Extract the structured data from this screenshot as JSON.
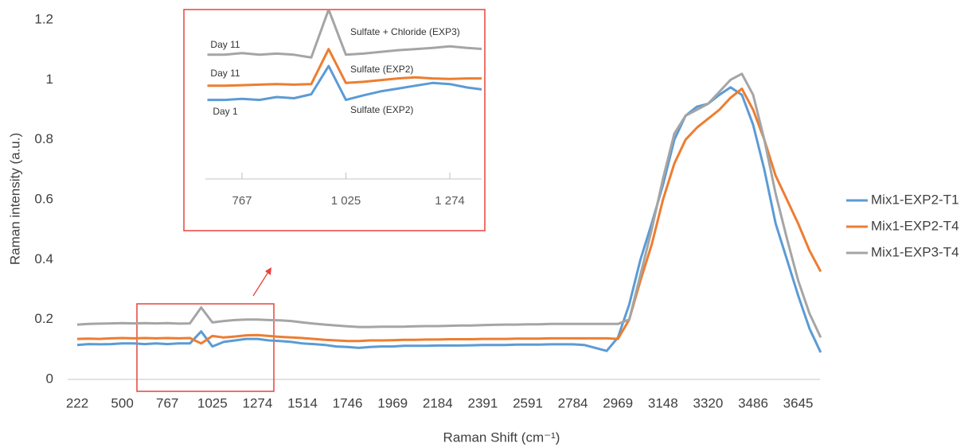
{
  "chart_data": [
    {
      "type": "line",
      "x_label": "Raman Shift (cm⁻¹)",
      "y_label": "Raman intensity (a.u.)",
      "categories": [
        "222",
        null,
        null,
        null,
        "500",
        null,
        null,
        null,
        "767",
        null,
        null,
        null,
        "1025",
        null,
        null,
        null,
        "1274",
        null,
        null,
        null,
        "1514",
        null,
        null,
        null,
        "1746",
        null,
        null,
        null,
        "1969",
        null,
        null,
        null,
        "2184",
        null,
        null,
        null,
        "2391",
        null,
        null,
        null,
        "2591",
        null,
        null,
        null,
        "2784",
        null,
        null,
        null,
        "2969",
        null,
        null,
        null,
        "3148",
        null,
        null,
        null,
        "3320",
        null,
        null,
        null,
        "3486",
        null,
        null,
        null,
        "3645",
        null,
        null
      ],
      "ylim": [
        0,
        1.2
      ],
      "yticks": [
        0,
        0.2,
        0.4,
        0.6,
        0.8,
        1,
        1.2
      ],
      "legend": "right",
      "series": [
        {
          "name": "Mix1-EXP2-T1",
          "color": "#5b9bd5",
          "values": [
            0.115,
            0.118,
            0.117,
            0.118,
            0.12,
            0.12,
            0.118,
            0.12,
            0.118,
            0.12,
            0.12,
            0.16,
            0.11,
            0.125,
            0.13,
            0.135,
            0.135,
            0.13,
            0.128,
            0.125,
            0.12,
            0.118,
            0.115,
            0.11,
            0.108,
            0.105,
            0.108,
            0.11,
            0.11,
            0.112,
            0.112,
            0.112,
            0.113,
            0.113,
            0.113,
            0.114,
            0.115,
            0.115,
            0.115,
            0.116,
            0.116,
            0.116,
            0.117,
            0.117,
            0.117,
            0.115,
            0.105,
            0.095,
            0.14,
            0.25,
            0.4,
            0.52,
            0.65,
            0.8,
            0.88,
            0.91,
            0.92,
            0.95,
            0.975,
            0.95,
            0.85,
            0.7,
            0.52,
            0.4,
            0.28,
            0.17,
            0.09
          ]
        },
        {
          "name": "Mix1-EXP2-T4",
          "color": "#ed7d31",
          "values": [
            0.135,
            0.136,
            0.135,
            0.137,
            0.138,
            0.137,
            0.138,
            0.137,
            0.138,
            0.137,
            0.138,
            0.12,
            0.145,
            0.14,
            0.143,
            0.147,
            0.148,
            0.145,
            0.142,
            0.14,
            0.138,
            0.135,
            0.132,
            0.13,
            0.128,
            0.128,
            0.13,
            0.13,
            0.131,
            0.132,
            0.132,
            0.133,
            0.133,
            0.134,
            0.134,
            0.134,
            0.135,
            0.135,
            0.135,
            0.136,
            0.136,
            0.136,
            0.137,
            0.137,
            0.137,
            0.137,
            0.137,
            0.137,
            0.135,
            0.2,
            0.33,
            0.45,
            0.6,
            0.72,
            0.8,
            0.84,
            0.87,
            0.9,
            0.94,
            0.97,
            0.9,
            0.8,
            0.68,
            0.6,
            0.52,
            0.43,
            0.36
          ]
        },
        {
          "name": "Mix1-EXP3-T4",
          "color": "#a5a5a5",
          "values": [
            0.183,
            0.185,
            0.186,
            0.187,
            0.188,
            0.187,
            0.188,
            0.187,
            0.188,
            0.186,
            0.187,
            0.24,
            0.19,
            0.195,
            0.198,
            0.2,
            0.2,
            0.198,
            0.197,
            0.195,
            0.19,
            0.186,
            0.183,
            0.18,
            0.177,
            0.175,
            0.175,
            0.176,
            0.176,
            0.176,
            0.177,
            0.178,
            0.178,
            0.179,
            0.18,
            0.18,
            0.181,
            0.182,
            0.183,
            0.183,
            0.184,
            0.184,
            0.185,
            0.185,
            0.185,
            0.185,
            0.185,
            0.185,
            0.185,
            0.2,
            0.35,
            0.5,
            0.67,
            0.82,
            0.88,
            0.9,
            0.92,
            0.96,
            1.0,
            1.02,
            0.95,
            0.8,
            0.62,
            0.47,
            0.33,
            0.22,
            0.14
          ]
        }
      ]
    },
    {
      "type": "line",
      "categories": [
        null,
        null,
        "767",
        null,
        null,
        null,
        null,
        null,
        "1 025",
        null,
        null,
        null,
        null,
        null,
        "1 274",
        null,
        null
      ],
      "ylim": [
        0,
        0.3
      ],
      "annotations": [
        "Day 11",
        "Day 11",
        "Day 1",
        "Sulfate + Chloride (EXP3)",
        "Sulfate (EXP2)",
        "Sulfate (EXP2)"
      ],
      "series": [
        {
          "color": "#a5a5a5",
          "values": [
            0.22,
            0.22,
            0.223,
            0.22,
            0.222,
            0.22,
            0.215,
            0.3,
            0.22,
            0.222,
            0.225,
            0.228,
            0.23,
            0.232,
            0.235,
            0.232,
            0.23
          ]
        },
        {
          "color": "#ed7d31",
          "values": [
            0.165,
            0.165,
            0.166,
            0.167,
            0.168,
            0.167,
            0.168,
            0.23,
            0.17,
            0.172,
            0.175,
            0.178,
            0.18,
            0.178,
            0.177,
            0.178,
            0.178
          ]
        },
        {
          "color": "#5b9bd5",
          "values": [
            0.14,
            0.14,
            0.142,
            0.14,
            0.145,
            0.143,
            0.15,
            0.2,
            0.14,
            0.148,
            0.155,
            0.16,
            0.165,
            0.17,
            0.168,
            0.162,
            0.158
          ]
        }
      ]
    }
  ]
}
